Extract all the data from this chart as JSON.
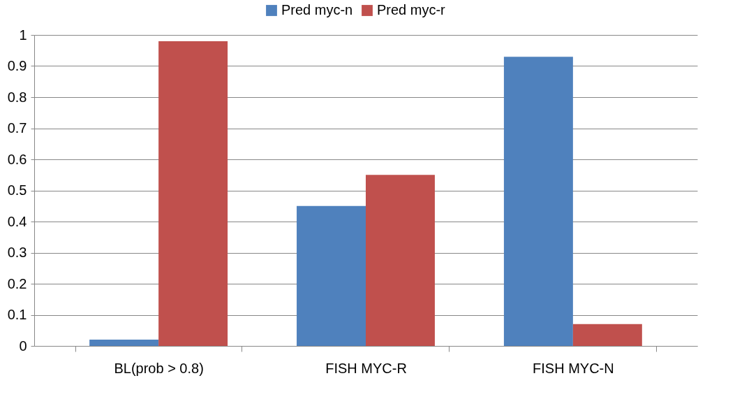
{
  "chart_data": {
    "type": "bar",
    "categories": [
      "BL(prob > 0.8)",
      "FISH MYC-R",
      "FISH MYC-N"
    ],
    "series": [
      {
        "name": "Pred myc-n",
        "color": "#4f81bd",
        "values": [
          0.02,
          0.45,
          0.93
        ]
      },
      {
        "name": "Pred myc-r",
        "color": "#c0504d",
        "values": [
          0.98,
          0.55,
          0.07
        ]
      }
    ],
    "ylim": [
      0,
      1
    ],
    "yticks": [
      0,
      0.1,
      0.2,
      0.3,
      0.4,
      0.5,
      0.6,
      0.7,
      0.8,
      0.9,
      1
    ],
    "grid": "y",
    "legend": "top"
  }
}
